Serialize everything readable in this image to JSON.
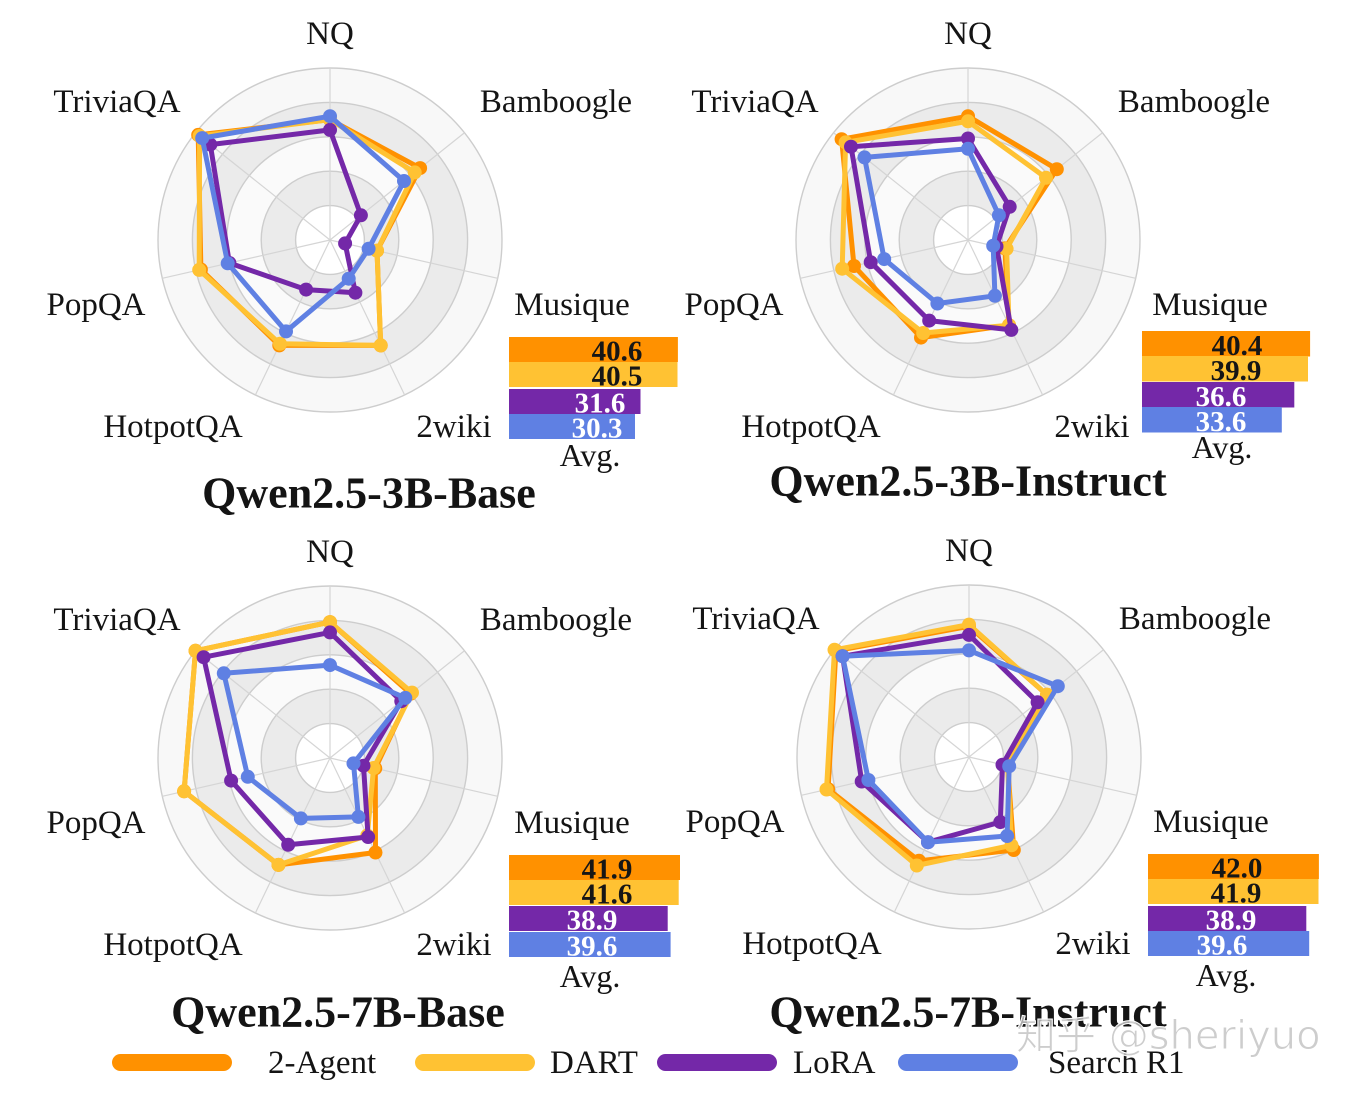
{
  "legend": {
    "position": "bottom",
    "items": [
      {
        "label": "2-Agent",
        "color": "#ff9100",
        "value_label_color": "#161616"
      },
      {
        "label": "DART",
        "color": "#ffc233",
        "value_label_color": "#161616"
      },
      {
        "label": "LoRA",
        "color": "#7428a8",
        "value_label_color": "#ffffff"
      },
      {
        "label": "Search R1",
        "color": "#5f80e3",
        "value_label_color": "#ffffff"
      }
    ]
  },
  "watermark": "知乎 @sheriyuo",
  "chart_data": [
    {
      "type": "radar",
      "title": "Qwen2.5-3B-Base",
      "axes": [
        "NQ",
        "Bamboogle",
        "Musique",
        "2wiki",
        "HotpotQA",
        "PopQA",
        "TriviaQA"
      ],
      "radial_scale": "unlabeled; values normalized 0-1 (outer ring = 1)",
      "ring_levels": [
        0.2,
        0.4,
        0.6,
        0.8,
        1.0
      ],
      "grid": true,
      "series": [
        {
          "name": "2-Agent",
          "values": [
            0.7,
            0.67,
            0.28,
            0.68,
            0.68,
            0.77,
            0.98
          ]
        },
        {
          "name": "DART",
          "values": [
            0.7,
            0.63,
            0.28,
            0.68,
            0.67,
            0.78,
            0.97
          ]
        },
        {
          "name": "LoRA",
          "values": [
            0.64,
            0.23,
            0.09,
            0.34,
            0.32,
            0.6,
            0.89
          ]
        },
        {
          "name": "Search R1",
          "values": [
            0.72,
            0.55,
            0.23,
            0.25,
            0.59,
            0.61,
            0.95
          ]
        }
      ],
      "avg_bar": {
        "type": "bar",
        "orientation": "horizontal",
        "label": "Avg.",
        "categories": [
          "2-Agent",
          "DART",
          "LoRA",
          "Search R1"
        ],
        "values": [
          40.6,
          40.5,
          31.6,
          30.3
        ],
        "value_labels": [
          "40.6",
          "40.5",
          "31.6",
          "30.3"
        ]
      }
    },
    {
      "type": "radar",
      "title": "Qwen2.5-3B-Instruct",
      "axes": [
        "NQ",
        "Bamboogle",
        "Musique",
        "2wiki",
        "HotpotQA",
        "PopQA",
        "TriviaQA"
      ],
      "radial_scale": "unlabeled; values normalized 0-1 (outer ring = 1)",
      "ring_levels": [
        0.2,
        0.4,
        0.6,
        0.8,
        1.0
      ],
      "grid": true,
      "series": [
        {
          "name": "2-Agent",
          "values": [
            0.72,
            0.66,
            0.22,
            0.55,
            0.63,
            0.68,
            0.94
          ]
        },
        {
          "name": "DART",
          "values": [
            0.69,
            0.58,
            0.23,
            0.55,
            0.6,
            0.75,
            0.91
          ]
        },
        {
          "name": "LoRA",
          "values": [
            0.59,
            0.31,
            0.17,
            0.58,
            0.52,
            0.58,
            0.87
          ]
        },
        {
          "name": "Search R1",
          "values": [
            0.53,
            0.23,
            0.15,
            0.36,
            0.41,
            0.5,
            0.77
          ]
        }
      ],
      "avg_bar": {
        "type": "bar",
        "orientation": "horizontal",
        "label": "Avg.",
        "categories": [
          "2-Agent",
          "DART",
          "LoRA",
          "Search R1"
        ],
        "values": [
          40.4,
          39.9,
          36.6,
          33.6
        ],
        "value_labels": [
          "40.4",
          "39.9",
          "36.6",
          "33.6"
        ]
      }
    },
    {
      "type": "radar",
      "title": "Qwen2.5-7B-Base",
      "axes": [
        "NQ",
        "Bamboogle",
        "Musique",
        "2wiki",
        "HotpotQA",
        "PopQA",
        "TriviaQA"
      ],
      "radial_scale": "unlabeled; values normalized 0-1 (outer ring = 1)",
      "ring_levels": [
        0.2,
        0.4,
        0.6,
        0.8,
        1.0
      ],
      "grid": true,
      "series": [
        {
          "name": "2-Agent",
          "values": [
            0.79,
            0.6,
            0.27,
            0.61,
            0.69,
            0.87,
            1.0
          ]
        },
        {
          "name": "DART",
          "values": [
            0.79,
            0.61,
            0.26,
            0.5,
            0.69,
            0.87,
            1.0
          ]
        },
        {
          "name": "LoRA",
          "values": [
            0.73,
            0.53,
            0.2,
            0.51,
            0.56,
            0.59,
            0.94
          ]
        },
        {
          "name": "Search R1",
          "values": [
            0.54,
            0.56,
            0.14,
            0.38,
            0.39,
            0.49,
            0.79
          ]
        }
      ],
      "avg_bar": {
        "type": "bar",
        "orientation": "horizontal",
        "label": "Avg.",
        "categories": [
          "2-Agent",
          "DART",
          "LoRA",
          "Search R1"
        ],
        "values": [
          41.9,
          41.6,
          38.9,
          39.6
        ],
        "value_labels": [
          "41.9",
          "41.6",
          "38.9",
          "39.6"
        ]
      }
    },
    {
      "type": "radar",
      "title": "Qwen2.5-7B-Instruct",
      "axes": [
        "NQ",
        "Bamboogle",
        "Musique",
        "2wiki",
        "HotpotQA",
        "PopQA",
        "TriviaQA"
      ],
      "radial_scale": "unlabeled; values normalized 0-1 (outer ring = 1)",
      "ring_levels": [
        0.2,
        0.4,
        0.6,
        0.8,
        1.0
      ],
      "grid": true,
      "series": [
        {
          "name": "2-Agent",
          "values": [
            0.76,
            0.58,
            0.23,
            0.6,
            0.67,
            0.84,
            0.99
          ]
        },
        {
          "name": "DART",
          "values": [
            0.77,
            0.58,
            0.23,
            0.57,
            0.7,
            0.85,
            1.0
          ]
        },
        {
          "name": "LoRA",
          "values": [
            0.71,
            0.51,
            0.2,
            0.42,
            0.55,
            0.64,
            0.94
          ]
        },
        {
          "name": "Search R1",
          "values": [
            0.62,
            0.66,
            0.24,
            0.51,
            0.55,
            0.6,
            0.94
          ]
        }
      ],
      "avg_bar": {
        "type": "bar",
        "orientation": "horizontal",
        "label": "Avg.",
        "categories": [
          "2-Agent",
          "DART",
          "LoRA",
          "Search R1"
        ],
        "values": [
          42.0,
          41.9,
          38.9,
          39.6
        ],
        "value_labels": [
          "42.0",
          "41.9",
          "38.9",
          "39.6"
        ]
      }
    }
  ]
}
